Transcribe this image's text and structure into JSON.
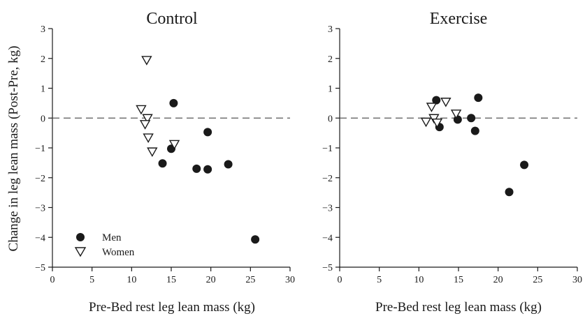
{
  "figure": {
    "ylabel": "Change in leg lean mass (Post-Pre, kg)",
    "legend": [
      {
        "label": "Men",
        "marker": "circle"
      },
      {
        "label": "Women",
        "marker": "triangle-down"
      }
    ],
    "colors": {
      "marker": "#1a1a1a",
      "zero_line": "#555555"
    }
  },
  "chart_data": [
    {
      "type": "scatter",
      "title": "Control",
      "xlabel": "Pre-Bed rest leg lean mass (kg)",
      "ylabel": "Change in leg lean mass (Post-Pre, kg)",
      "xlim": [
        0,
        30
      ],
      "ylim": [
        -5,
        3
      ],
      "xticks": [
        "0",
        "5",
        "10",
        "15",
        "20",
        "25",
        "30"
      ],
      "yticks": [
        "3",
        "2",
        "1",
        "0",
        "−1",
        "−2",
        "−3",
        "−4",
        "−5"
      ],
      "reference_line": {
        "y": 0,
        "style": "dashed"
      },
      "legend_position": "lower-left",
      "grid": false,
      "series": [
        {
          "name": "Men",
          "marker": "circle",
          "points": [
            [
              15.3,
              0.5
            ],
            [
              15.0,
              -1.03
            ],
            [
              13.9,
              -1.52
            ],
            [
              18.2,
              -1.7
            ],
            [
              19.6,
              -1.72
            ],
            [
              19.6,
              -0.47
            ],
            [
              22.2,
              -1.55
            ],
            [
              25.6,
              -4.07
            ]
          ]
        },
        {
          "name": "Women",
          "marker": "triangle-down",
          "points": [
            [
              11.9,
              1.95
            ],
            [
              11.2,
              0.3
            ],
            [
              12.0,
              0.0
            ],
            [
              11.7,
              -0.2
            ],
            [
              12.1,
              -0.65
            ],
            [
              12.6,
              -1.12
            ],
            [
              15.4,
              -0.87
            ]
          ]
        }
      ]
    },
    {
      "type": "scatter",
      "title": "Exercise",
      "xlabel": "Pre-Bed rest leg lean mass (kg)",
      "ylabel": "",
      "xlim": [
        0,
        30
      ],
      "ylim": [
        -5,
        3
      ],
      "xticks": [
        "0",
        "5",
        "10",
        "15",
        "20",
        "25",
        "30"
      ],
      "yticks": [
        "3",
        "2",
        "1",
        "0",
        "−1",
        "−2",
        "−3",
        "−4",
        "−5"
      ],
      "reference_line": {
        "y": 0,
        "style": "dashed"
      },
      "grid": false,
      "series": [
        {
          "name": "Men",
          "marker": "circle",
          "points": [
            [
              12.2,
              0.6
            ],
            [
              12.6,
              -0.3
            ],
            [
              14.9,
              -0.05
            ],
            [
              16.6,
              0.0
            ],
            [
              17.1,
              -0.43
            ],
            [
              17.5,
              0.68
            ],
            [
              21.4,
              -2.48
            ],
            [
              23.3,
              -1.57
            ]
          ]
        },
        {
          "name": "Women",
          "marker": "triangle-down",
          "points": [
            [
              10.9,
              -0.12
            ],
            [
              11.6,
              0.38
            ],
            [
              11.9,
              0.0
            ],
            [
              12.3,
              -0.15
            ],
            [
              13.4,
              0.55
            ],
            [
              14.7,
              0.15
            ]
          ]
        }
      ]
    }
  ]
}
